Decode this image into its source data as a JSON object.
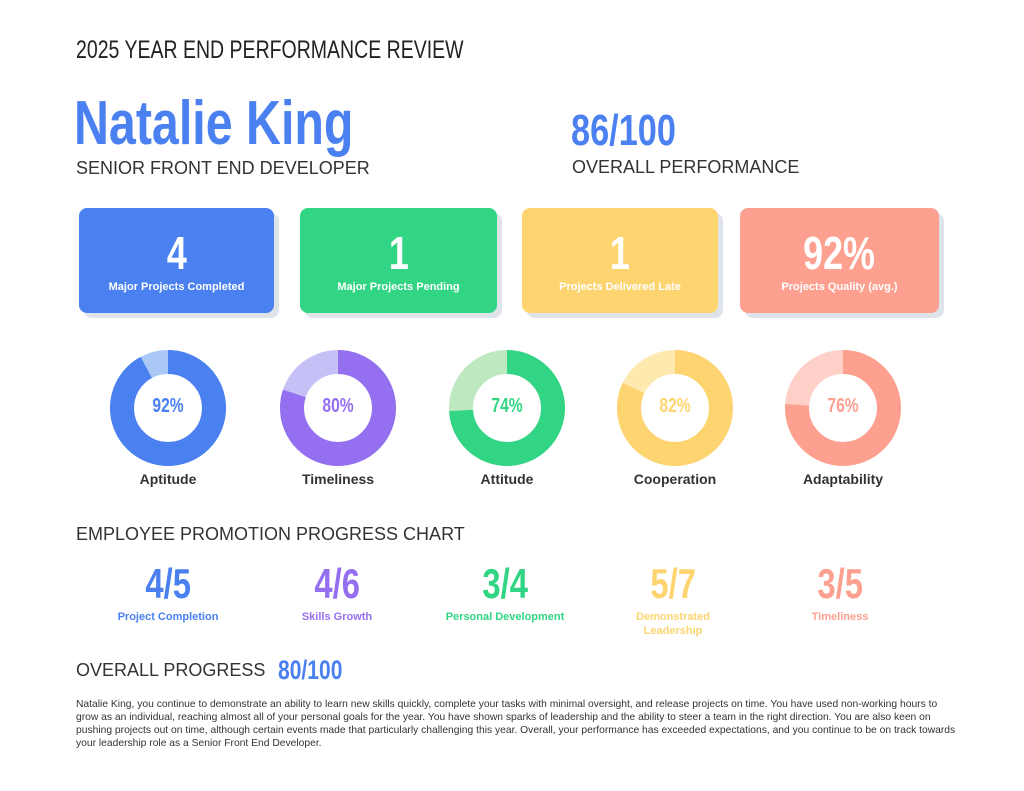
{
  "header": {
    "title": "2025 YEAR END PERFORMANCE REVIEW",
    "name": "Natalie King",
    "role": "SENIOR FRONT END DEVELOPER",
    "score": "86/100",
    "score_label": "OVERALL PERFORMANCE"
  },
  "colors": {
    "blue": "#4a80f0",
    "green": "#31d583",
    "yellow": "#fdd470",
    "salmon": "#fda08f",
    "purple": "#9470f0"
  },
  "cards": [
    {
      "value": "4",
      "label": "Major Projects Completed",
      "color": "#4a80f0"
    },
    {
      "value": "1",
      "label": "Major Projects Pending",
      "color": "#31d583"
    },
    {
      "value": "1",
      "label": "Projects Delivered Late",
      "color": "#fdd470"
    },
    {
      "value": "92%",
      "label": "Projects Quality (avg.)",
      "color": "#fda08f"
    }
  ],
  "donuts": [
    {
      "label": "Aptitude",
      "percent": 92,
      "text": "92%",
      "color": "#4a80f0",
      "light": "#a9c8f7"
    },
    {
      "label": "Timeliness",
      "percent": 80,
      "text": "80%",
      "color": "#9470f0",
      "light": "#c5c0f5"
    },
    {
      "label": "Attitude",
      "percent": 74,
      "text": "74%",
      "color": "#31d583",
      "light": "#bde8c0"
    },
    {
      "label": "Cooperation",
      "percent": 82,
      "text": "82%",
      "color": "#fdd470",
      "light": "#feeaae"
    },
    {
      "label": "Adaptability",
      "percent": 76,
      "text": "76%",
      "color": "#fda08f",
      "light": "#fed0c8"
    }
  ],
  "promotion": {
    "title": "EMPLOYEE PROMOTION PROGRESS CHART",
    "items": [
      {
        "value": "4/5",
        "label": "Project Completion",
        "color": "#4a80f0"
      },
      {
        "value": "4/6",
        "label": "Skills Growth",
        "color": "#9470f0"
      },
      {
        "value": "3/4",
        "label": "Personal Development",
        "color": "#31d583"
      },
      {
        "value": "5/7",
        "label": "Demonstrated Leadership",
        "color": "#fdd470"
      },
      {
        "value": "3/5",
        "label": "Timeliness",
        "color": "#fda08f"
      }
    ],
    "overall_label": "OVERALL PROGRESS",
    "overall_value": "80/100"
  },
  "summary": "Natalie King, you continue to demonstrate an ability to learn new skills quickly, complete your tasks with minimal oversight, and release projects on time. You have used non-working hours to grow as an individual, reaching almost all of your personal goals for the year. You have shown sparks of leadership and the ability to steer a team in the right direction. You are also keen on pushing projects out on time, although certain events made that particularly challenging this year. Overall, your performance has exceeded expectations, and you continue to be on track towards your leadership role as a Senior Front End Developer."
}
